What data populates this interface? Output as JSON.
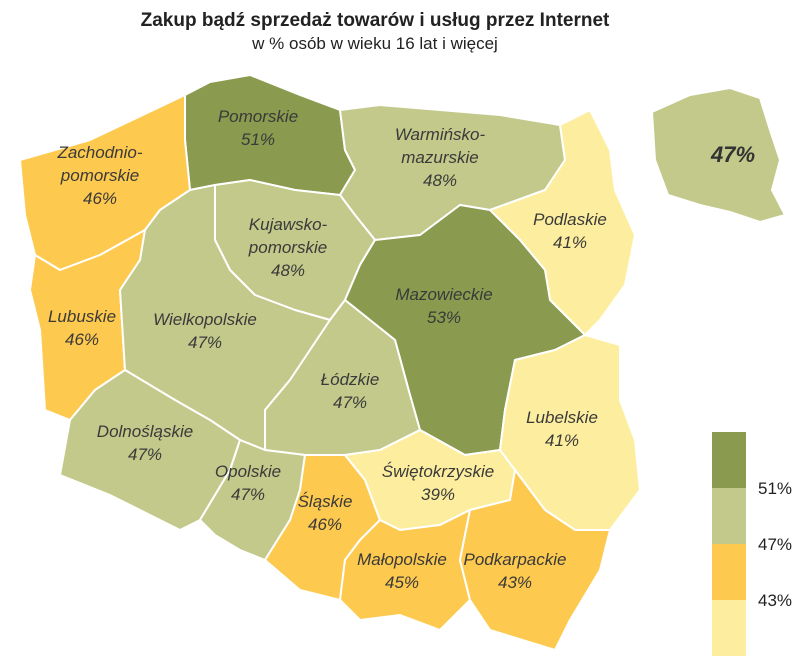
{
  "chart_data": {
    "type": "choropleth",
    "title": "Zakup bądź sprzedaż towarów i usług przez Internet",
    "subtitle": "w % osób w wieku 16 lat i więcej",
    "categories": [
      "Pomorskie",
      "Warmińsko-mazurskie",
      "Podlaskie",
      "Zachodnio-pomorskie",
      "Kujawsko-pomorskie",
      "Mazowieckie",
      "Lubuskie",
      "Wielkopolskie",
      "Łódzkie",
      "Dolnośląskie",
      "Opolskie",
      "Śląskie",
      "Świętokrzyskie",
      "Lubelskie",
      "Małopolskie",
      "Podkarpackie"
    ],
    "values": [
      51,
      48,
      41,
      46,
      48,
      53,
      46,
      47,
      47,
      47,
      47,
      46,
      39,
      41,
      45,
      43
    ],
    "value_labels": [
      "51%",
      "48%",
      "41%",
      "46%",
      "48%",
      "53%",
      "46%",
      "47%",
      "47%",
      "47%",
      "47%",
      "46%",
      "39%",
      "41%",
      "45%",
      "43%"
    ],
    "national": {
      "value": 47,
      "label": "47%"
    },
    "legend": {
      "breaks": [
        {
          "value": 51,
          "label": "51%"
        },
        {
          "value": 47,
          "label": "47%"
        },
        {
          "value": 43,
          "label": "43%"
        }
      ],
      "colors": [
        "#8a9a4e",
        "#c2c98a",
        "#fdc94e",
        "#fdee9f"
      ]
    }
  }
}
